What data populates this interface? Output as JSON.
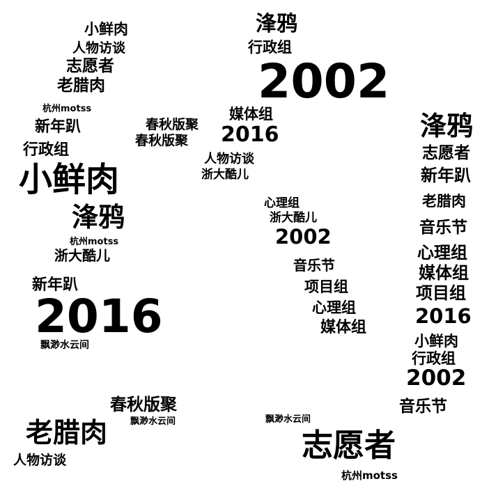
{
  "words": [
    "小鲜肉",
    "人物访谈",
    "志愿者",
    "老腊肉",
    "杭州motss",
    "新年趴",
    "行政组",
    "春秋版聚",
    "春秋版聚",
    "小鲜肉",
    "浲鸦",
    "杭州motss",
    "浙大酷儿",
    "新年趴",
    "2016",
    "飘渺水云间",
    "浲鸦",
    "行政组",
    "2002",
    "媒体组",
    "2016",
    "人物访谈",
    "浙大酷儿",
    "浲鸦",
    "志愿者",
    "新年趴",
    "老腊肉",
    "心理组",
    "浙大酷儿",
    "2002",
    "音乐节",
    "项目组",
    "心理组",
    "媒体组",
    "音乐节",
    "心理组",
    "媒体组",
    "项目组",
    "2016",
    "小鲜肉",
    "行政组",
    "2002",
    "音乐节",
    "春秋版聚",
    "飘渺水云间",
    "老腊肉",
    "人物访谈",
    "飘渺水云间",
    "志愿者",
    "杭州motss"
  ],
  "colors": {
    "text": "#000000",
    "background": "#ffffff"
  }
}
